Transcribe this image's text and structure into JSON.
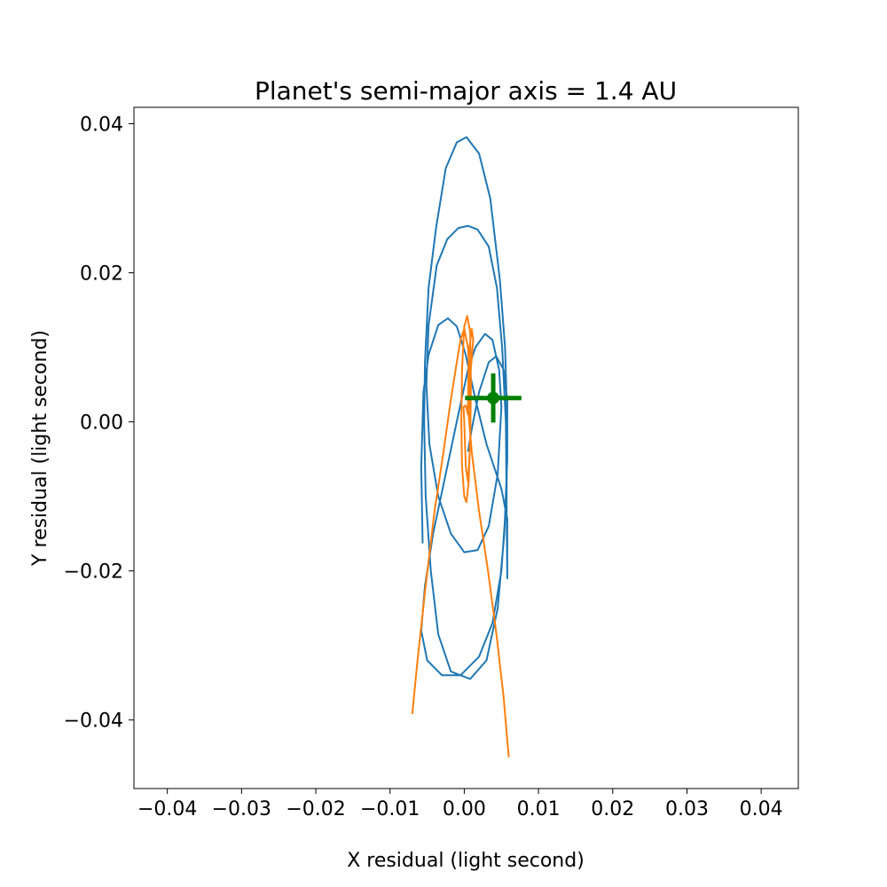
{
  "chart_data": {
    "type": "line",
    "title": "Planet's semi-major axis = 1.4 AU",
    "xlabel": "X residual (light second)",
    "ylabel": "Y residual (light second)",
    "xlim": [
      -0.0445,
      0.045
    ],
    "ylim": [
      -0.0492,
      0.0422
    ],
    "xticks": [
      -0.04,
      -0.03,
      -0.02,
      -0.01,
      0.0,
      0.01,
      0.02,
      0.03,
      0.04
    ],
    "xtick_labels": [
      "−0.04",
      "−0.03",
      "−0.02",
      "−0.01",
      "0.00",
      "0.01",
      "0.02",
      "0.03",
      "0.04"
    ],
    "yticks": [
      -0.04,
      -0.02,
      0.0,
      0.02,
      0.04
    ],
    "ytick_labels": [
      "−0.04",
      "−0.02",
      "0.00",
      "0.02",
      "0.04"
    ],
    "grid": false,
    "colors": {
      "series_blue": "#1f77b4",
      "series_orange": "#ff7f0e",
      "marker_green": "#008000"
    },
    "series": [
      {
        "color": "#1f77b4",
        "points": [
          [
            -0.0056,
            -0.0163
          ],
          [
            -0.0058,
            -0.006
          ],
          [
            -0.0055,
            0.004
          ],
          [
            -0.0048,
            0.009
          ],
          [
            -0.0035,
            0.013
          ],
          [
            -0.0022,
            0.0139
          ],
          [
            -0.001,
            0.0128
          ],
          [
            0.0002,
            0.009
          ],
          [
            0.0015,
            0.003
          ],
          [
            0.003,
            -0.003
          ],
          [
            0.005,
            -0.009
          ],
          [
            0.0058,
            -0.013
          ],
          [
            0.0058,
            -0.021
          ],
          [
            0.0056,
            0.0
          ],
          [
            0.0051,
            0.01
          ],
          [
            0.0044,
            0.018
          ],
          [
            0.0033,
            0.0235
          ],
          [
            0.0018,
            0.0258
          ],
          [
            0.0005,
            0.0263
          ],
          [
            -0.0008,
            0.026
          ],
          [
            -0.0023,
            0.0245
          ],
          [
            -0.0037,
            0.021
          ],
          [
            -0.0048,
            0.013
          ],
          [
            -0.0051,
            0.005
          ],
          [
            -0.0047,
            -0.003
          ],
          [
            -0.0035,
            -0.01
          ],
          [
            -0.0018,
            -0.015
          ],
          [
            0.0,
            -0.0175
          ],
          [
            0.0018,
            -0.0172
          ],
          [
            0.0033,
            -0.014
          ],
          [
            0.0045,
            -0.007
          ],
          [
            0.005,
            0.002
          ],
          [
            0.0047,
            0.007
          ],
          [
            0.0038,
            0.011
          ],
          [
            0.0028,
            0.0118
          ],
          [
            0.0015,
            0.01
          ],
          [
            0.0005,
            0.007
          ],
          [
            -0.0008,
            0.001
          ],
          [
            -0.0025,
            -0.007
          ],
          [
            -0.0042,
            -0.015
          ],
          [
            -0.0053,
            -0.022
          ],
          [
            -0.0058,
            -0.028
          ],
          [
            -0.005,
            -0.032
          ],
          [
            -0.003,
            -0.034
          ],
          [
            -0.0005,
            -0.034
          ],
          [
            0.002,
            -0.0315
          ],
          [
            0.0038,
            -0.027
          ],
          [
            0.005,
            -0.02
          ],
          [
            0.0057,
            -0.01
          ],
          [
            0.0058,
            0.0
          ],
          [
            0.0055,
            0.01
          ],
          [
            0.0048,
            0.019
          ],
          [
            0.0035,
            0.03
          ],
          [
            0.002,
            0.036
          ],
          [
            0.0003,
            0.0382
          ],
          [
            -0.001,
            0.0375
          ],
          [
            -0.0025,
            0.034
          ],
          [
            -0.0038,
            0.026
          ],
          [
            -0.0048,
            0.018
          ],
          [
            -0.0053,
            0.008
          ],
          [
            -0.0054,
            0.0
          ],
          [
            -0.0052,
            -0.01
          ],
          [
            -0.0045,
            -0.02
          ],
          [
            -0.0035,
            -0.0285
          ],
          [
            -0.0018,
            -0.0335
          ],
          [
            0.0008,
            -0.0345
          ],
          [
            0.003,
            -0.032
          ],
          [
            0.0045,
            -0.025
          ],
          [
            0.0054,
            -0.015
          ],
          [
            0.0058,
            -0.005
          ],
          [
            0.0058,
            0.003
          ],
          [
            0.0053,
            0.007
          ],
          [
            0.0043,
            0.0088
          ],
          [
            0.0033,
            0.008
          ],
          [
            0.002,
            0.004
          ],
          [
            0.001,
            -0.001
          ],
          [
            0.0005,
            -0.004
          ]
        ]
      },
      {
        "color": "#ff7f0e",
        "points": [
          [
            -0.007,
            -0.0392
          ],
          [
            -0.0063,
            -0.032
          ],
          [
            -0.0052,
            -0.022
          ],
          [
            -0.004,
            -0.012
          ],
          [
            -0.0028,
            -0.004
          ],
          [
            -0.0018,
            0.003
          ],
          [
            -0.001,
            0.008
          ],
          [
            -0.0005,
            0.011
          ],
          [
            0.0,
            0.0125
          ],
          [
            0.0005,
            0.01
          ],
          [
            0.0008,
            0.005
          ],
          [
            0.0008,
            -0.002
          ],
          [
            0.0006,
            -0.008
          ],
          [
            0.0003,
            -0.0108
          ],
          [
            0.0,
            -0.01
          ],
          [
            -0.0003,
            -0.006
          ],
          [
            -0.0004,
            0.0
          ],
          [
            -0.0003,
            0.007
          ],
          [
            0.0,
            0.0128
          ],
          [
            0.0004,
            0.0142
          ],
          [
            0.0008,
            0.012
          ],
          [
            0.0009,
            0.005
          ],
          [
            0.0008,
            -0.003
          ],
          [
            0.0005,
            -0.008
          ],
          [
            0.0002,
            -0.006
          ],
          [
            0.0,
            0.0
          ],
          [
            -0.0001,
            0.002
          ],
          [
            0.0002,
            0.0022
          ],
          [
            0.0005,
            0.001
          ],
          [
            0.0008,
            0.006
          ],
          [
            0.0012,
            0.011
          ],
          [
            0.001,
            0.0125
          ],
          [
            0.0006,
            0.009
          ],
          [
            0.0005,
            0.002
          ],
          [
            0.001,
            -0.004
          ],
          [
            0.002,
            -0.012
          ],
          [
            0.0032,
            -0.02
          ],
          [
            0.0044,
            -0.029
          ],
          [
            0.0053,
            -0.037
          ],
          [
            0.006,
            -0.045
          ]
        ]
      }
    ],
    "marker": {
      "color": "#008000",
      "x": 0.0039,
      "y": 0.0032,
      "xerr": 0.0038,
      "yerr": 0.0033
    }
  }
}
